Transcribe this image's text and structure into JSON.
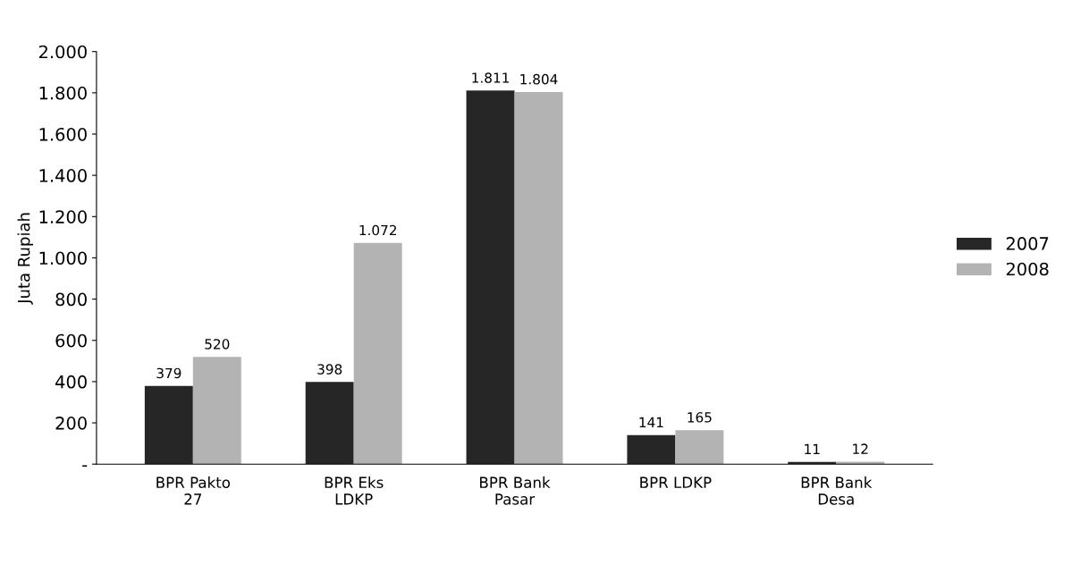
{
  "chart_data": {
    "type": "bar",
    "ylabel": "Juta Rupiah",
    "categories": [
      "BPR Pakto 27",
      "BPR Eks LDKP",
      "BPR Bank Pasar",
      "BPR LDKP",
      "BPR Bank Desa"
    ],
    "series": [
      {
        "name": "2007",
        "color": "#262626",
        "values": [
          379,
          398,
          1811,
          141,
          11
        ],
        "value_labels": [
          "379",
          "398",
          "1.811",
          "141",
          "11"
        ]
      },
      {
        "name": "2008",
        "color": "#b3b3b3",
        "values": [
          520,
          1072,
          1804,
          165,
          12
        ],
        "value_labels": [
          "520",
          "1.072",
          "1.804",
          "165",
          "12"
        ]
      }
    ],
    "ylim": [
      0,
      2000
    ],
    "yticks": [
      {
        "value": 0,
        "label": "-"
      },
      {
        "value": 200,
        "label": "200"
      },
      {
        "value": 400,
        "label": "400"
      },
      {
        "value": 600,
        "label": "600"
      },
      {
        "value": 800,
        "label": "800"
      },
      {
        "value": 1000,
        "label": "1.000"
      },
      {
        "value": 1200,
        "label": "1.200"
      },
      {
        "value": 1400,
        "label": "1.400"
      },
      {
        "value": 1600,
        "label": "1.600"
      },
      {
        "value": 1800,
        "label": "1.800"
      },
      {
        "value": 2000,
        "label": "2.000"
      }
    ],
    "grid": false,
    "legend": "right"
  }
}
